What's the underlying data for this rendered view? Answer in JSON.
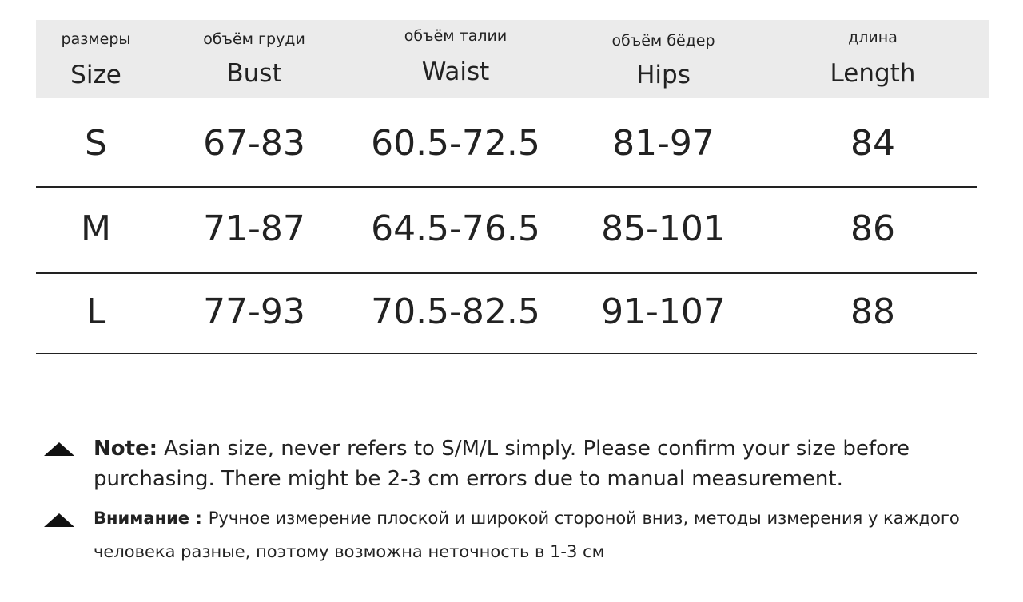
{
  "table": {
    "header": [
      {
        "ru": "размеры",
        "en": "Size"
      },
      {
        "ru": "объём груди",
        "en": "Bust"
      },
      {
        "ru": "объём талии",
        "en": "Waist"
      },
      {
        "ru": "объём бёдер",
        "en": "Hips"
      },
      {
        "ru": "длина",
        "en": "Length"
      }
    ],
    "rows": [
      [
        "S",
        "67-83",
        "60.5-72.5",
        "81-97",
        "84"
      ],
      [
        "M",
        "71-87",
        "64.5-76.5",
        "85-101",
        "86"
      ],
      [
        "L",
        "77-93",
        "70.5-82.5",
        "91-107",
        "88"
      ]
    ]
  },
  "notes": [
    {
      "label": "Note:",
      "text": "Asian size, never refers to S/M/L simply. Please confirm your size before purchasing. There might be 2-3 cm errors due to manual measurement."
    },
    {
      "label": "Внимание :",
      "text": "Ручное измерение плоской и широкой стороной вниз, методы измерения у каждого человека разные, поэтому возможна неточность в 1-3 см"
    }
  ]
}
